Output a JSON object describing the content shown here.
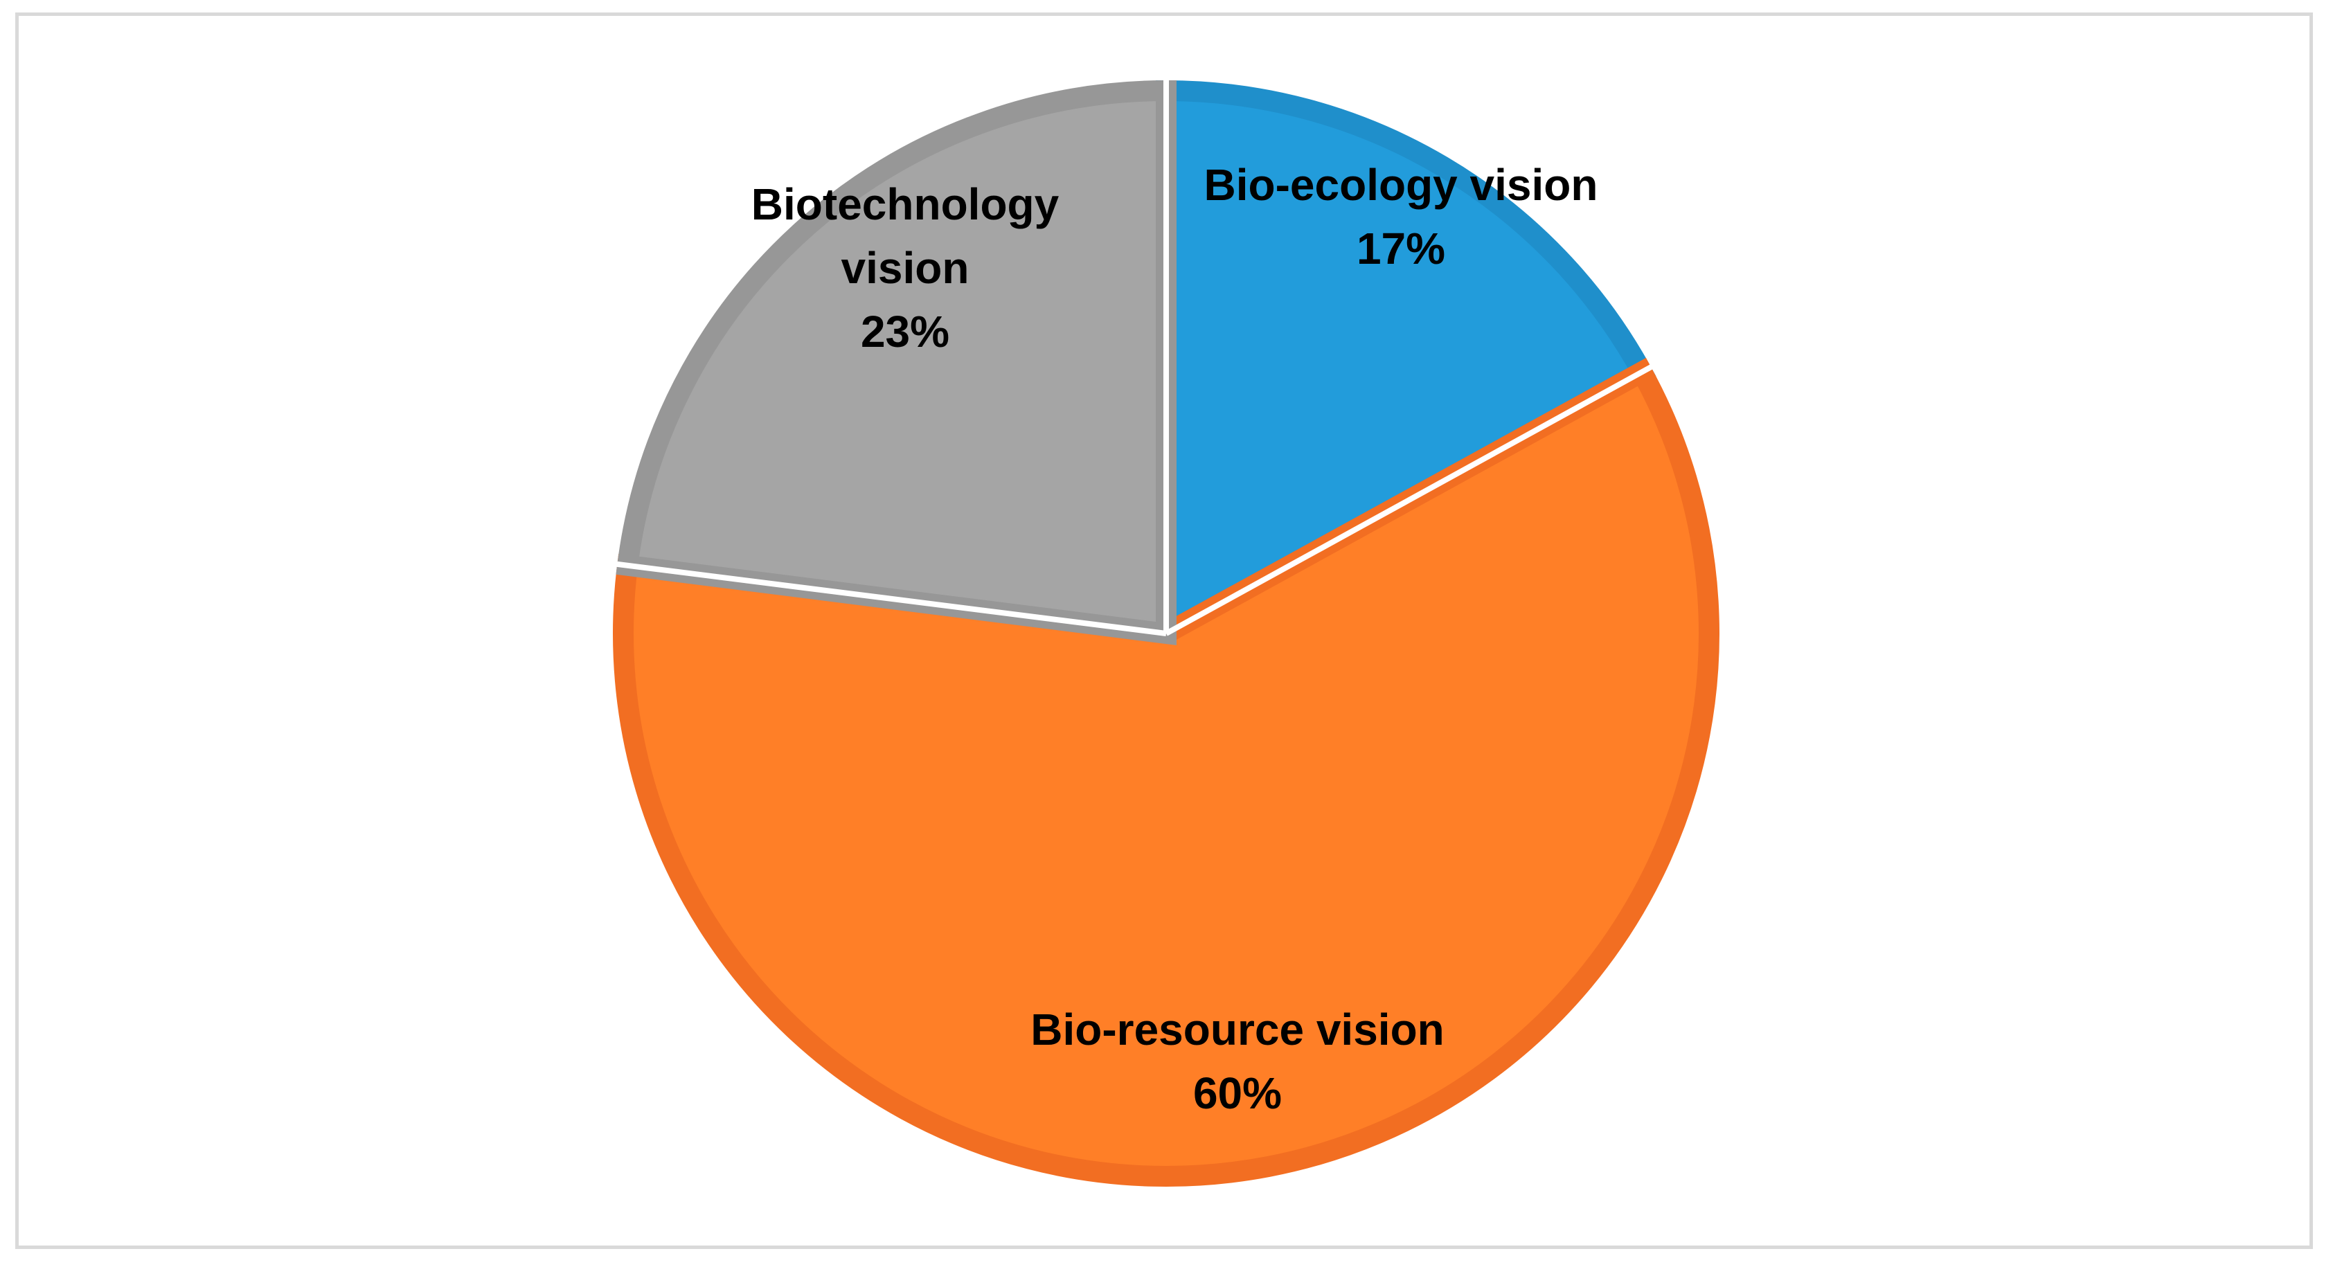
{
  "chart_data": {
    "type": "pie",
    "title": "",
    "slices": [
      {
        "label": "Bio-ecology vision",
        "label_lines": [
          "Bio-ecology vision"
        ],
        "value_label": "17%",
        "value": 17,
        "color": "#229CDB",
        "stroke": "#1F8FCB"
      },
      {
        "label": "Bio-resource vision",
        "label_lines": [
          "Bio-resource vision"
        ],
        "value_label": "60%",
        "value": 60,
        "color": "#FF7F27",
        "stroke": "#F26E22"
      },
      {
        "label": "Biotechnology vision",
        "label_lines": [
          "Biotechnology",
          "vision"
        ],
        "value_label": "23%",
        "value": 23,
        "color": "#A5A5A5",
        "stroke": "#979797"
      }
    ],
    "start_angle_deg": 0,
    "direction": "clockwise",
    "legend": "none"
  }
}
